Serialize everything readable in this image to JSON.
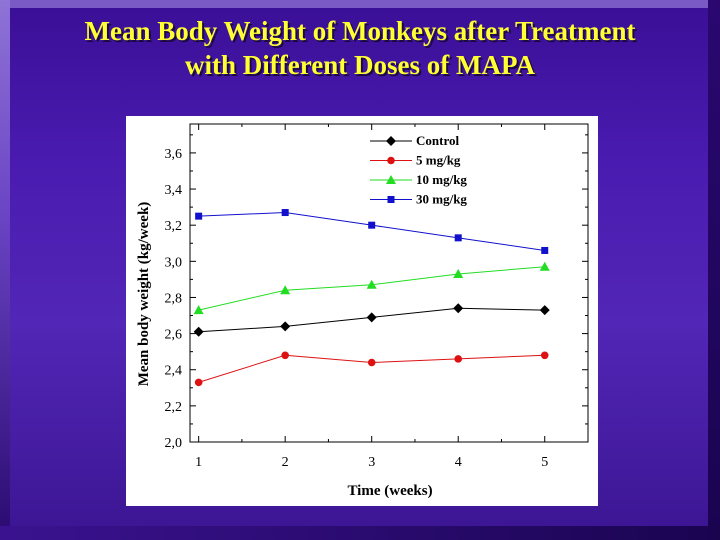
{
  "slide": {
    "title_line1": "Mean Body Weight of Monkeys after Treatment",
    "title_line2": "with Different Doses of MAPA"
  },
  "colors": {
    "background": "#4a1bb0",
    "title": "#ffff33"
  },
  "chart_data": {
    "type": "line",
    "title": "",
    "xlabel": "Time (weeks)",
    "ylabel": "Mean body weight (kg/week)",
    "x": [
      1,
      2,
      3,
      4,
      5
    ],
    "x_ticks": [
      "1",
      "2",
      "3",
      "4",
      "5"
    ],
    "xlim": [
      0.9,
      5.5
    ],
    "ylim": [
      2.0,
      3.76
    ],
    "y_ticks": [
      "2,0",
      "2,2",
      "2,4",
      "2,6",
      "2,8",
      "3,0",
      "3,2",
      "3,4",
      "3,6"
    ],
    "y_tick_values": [
      2.0,
      2.2,
      2.4,
      2.6,
      2.8,
      3.0,
      3.2,
      3.4,
      3.6
    ],
    "legend_position": "top-center",
    "grid": false,
    "series": [
      {
        "name": "Control",
        "values": [
          2.61,
          2.64,
          2.69,
          2.74,
          2.73
        ],
        "color": "#000000",
        "marker": "diamond"
      },
      {
        "name": "5 mg/kg",
        "values": [
          2.33,
          2.48,
          2.44,
          2.46,
          2.48
        ],
        "color": "#dd1111",
        "marker": "circle"
      },
      {
        "name": "10 mg/kg",
        "values": [
          2.73,
          2.84,
          2.87,
          2.93,
          2.97
        ],
        "color": "#22dd22",
        "marker": "triangle"
      },
      {
        "name": "30 mg/kg",
        "values": [
          3.25,
          3.27,
          3.2,
          3.13,
          3.06
        ],
        "color": "#1111cc",
        "marker": "square"
      }
    ]
  }
}
